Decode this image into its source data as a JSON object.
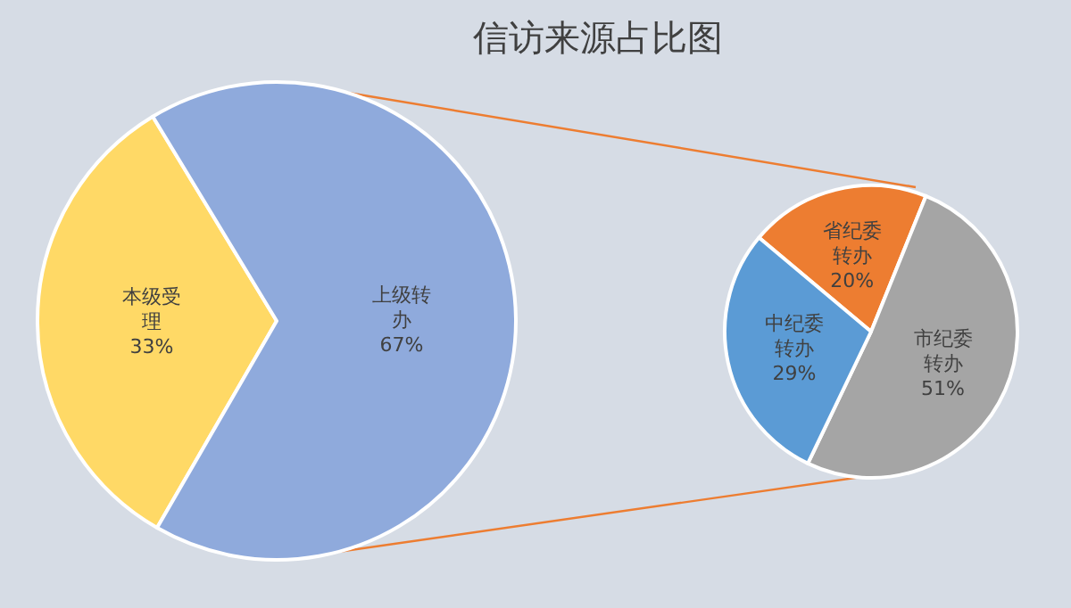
{
  "chart_data": [
    {
      "type": "pie",
      "title": "信访来源占比图",
      "categories": [
        "本级受理",
        "上级转办"
      ],
      "values": [
        33,
        67
      ],
      "colors": [
        "#ffd966",
        "#8faadc"
      ],
      "value_labels": [
        "33%",
        "67%"
      ]
    },
    {
      "type": "pie",
      "categories": [
        "省纪委转办",
        "市纪委转办",
        "中纪委转办"
      ],
      "values": [
        20,
        51,
        29
      ],
      "colors": [
        "#ed7d31",
        "#a5a5a5",
        "#5b9bd5"
      ],
      "value_labels": [
        "20%",
        "51%",
        "29%"
      ]
    }
  ]
}
